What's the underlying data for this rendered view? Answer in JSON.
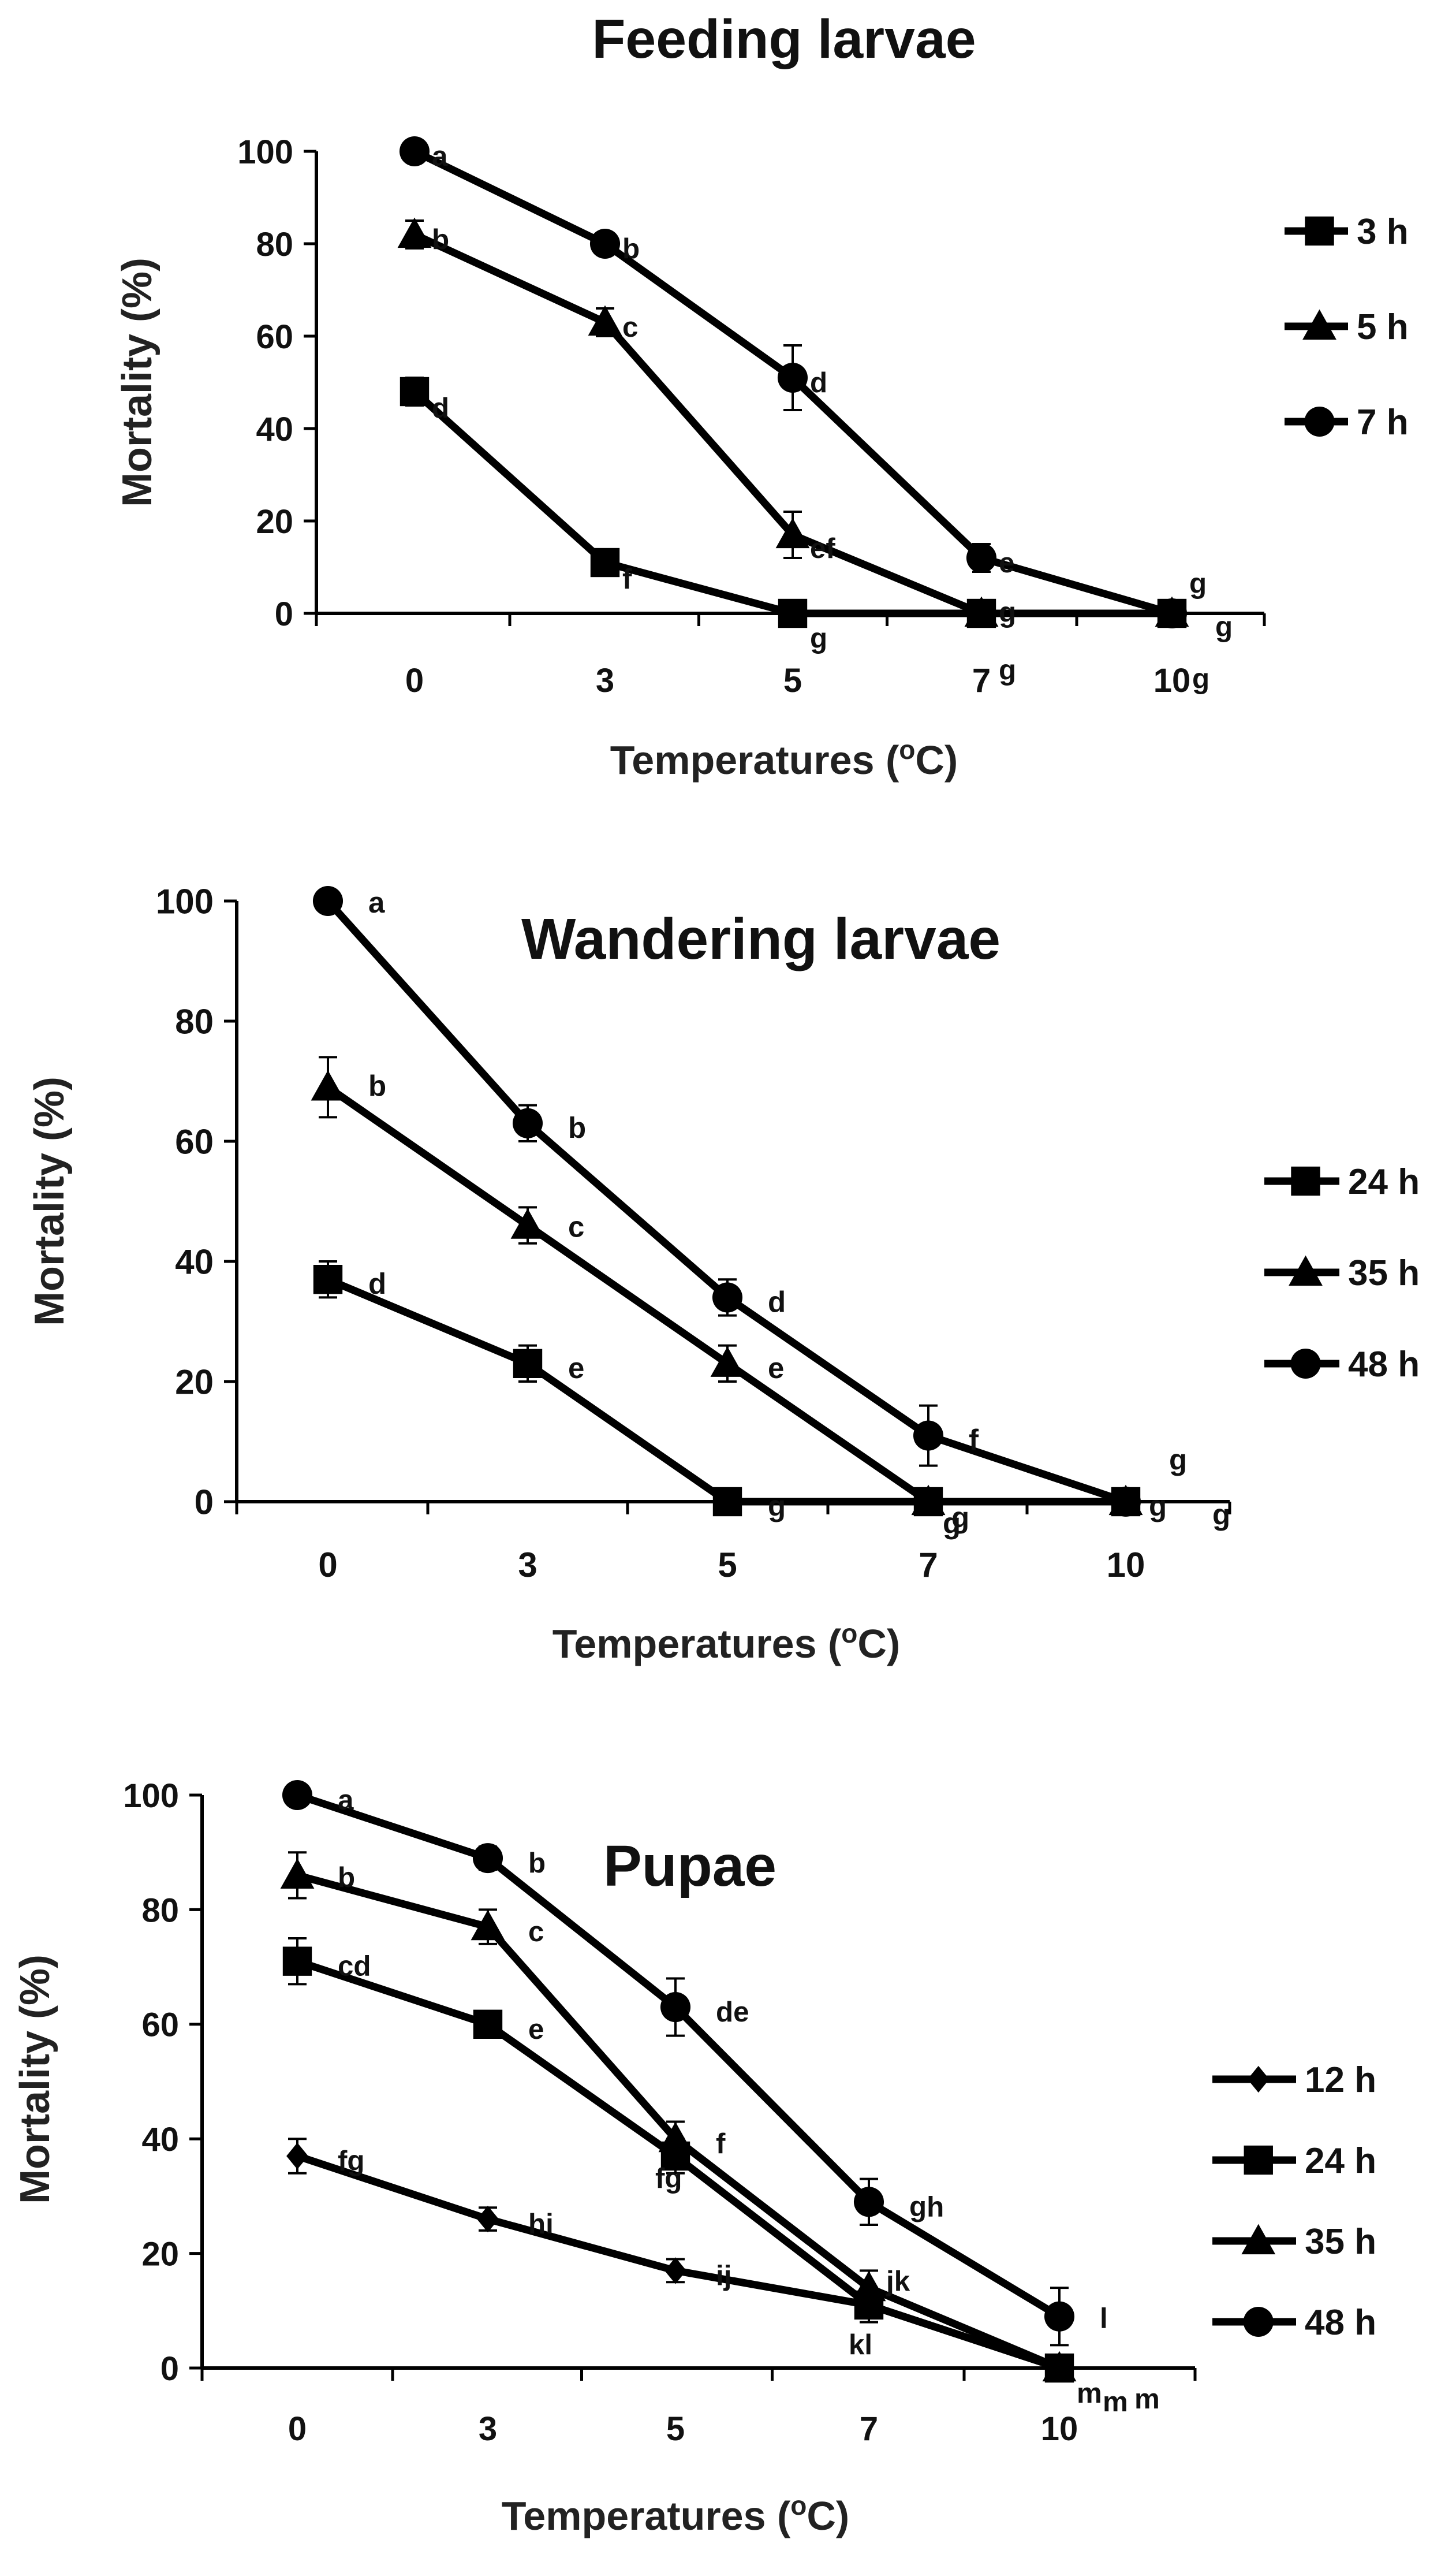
{
  "chart_data": [
    {
      "type": "line",
      "title": "Feeding larvae",
      "xlabel": "Temperatures (",
      "xlabel_sup": "o",
      "xlabel_tail": "C)",
      "ylabel": "Mortality (%)",
      "categories": [
        "0",
        "3",
        "5",
        "7",
        "10"
      ],
      "ylim": [
        0,
        100
      ],
      "yticks": [
        "0",
        "20",
        "40",
        "60",
        "80",
        "100"
      ],
      "series": [
        {
          "name": "3 h",
          "marker": "square",
          "values": [
            48,
            11,
            0,
            0,
            0
          ],
          "errors": [
            3,
            2,
            0,
            0,
            0
          ],
          "letters": [
            "d",
            "f",
            "g",
            "g",
            "g"
          ]
        },
        {
          "name": "5 h",
          "marker": "triangle",
          "values": [
            82,
            63,
            17,
            0,
            0
          ],
          "errors": [
            3,
            3,
            5,
            0,
            0
          ],
          "letters": [
            "b",
            "c",
            "ef",
            "g",
            "g"
          ]
        },
        {
          "name": "7 h",
          "marker": "circle",
          "values": [
            100,
            80,
            51,
            12,
            0
          ],
          "errors": [
            0,
            2,
            7,
            3,
            0
          ],
          "letters": [
            "a",
            "b",
            "d",
            "e",
            "g"
          ]
        }
      ]
    },
    {
      "type": "line",
      "title": "Wandering larvae",
      "xlabel": "Temperatures (",
      "xlabel_sup": "o",
      "xlabel_tail": "C)",
      "ylabel": "Mortality (%)",
      "categories": [
        "0",
        "3",
        "5",
        "7",
        "10"
      ],
      "ylim": [
        0,
        100
      ],
      "yticks": [
        "0",
        "20",
        "40",
        "60",
        "80",
        "100"
      ],
      "series": [
        {
          "name": "24 h",
          "marker": "square",
          "values": [
            37,
            23,
            0,
            0,
            0
          ],
          "errors": [
            3,
            3,
            0,
            0,
            0
          ],
          "letters": [
            "d",
            "e",
            "g",
            "g",
            "g"
          ]
        },
        {
          "name": "35 h",
          "marker": "triangle",
          "values": [
            69,
            46,
            23,
            0,
            0
          ],
          "errors": [
            5,
            3,
            3,
            0,
            0
          ],
          "letters": [
            "b",
            "c",
            "e",
            "g",
            "g"
          ]
        },
        {
          "name": "48 h",
          "marker": "circle",
          "values": [
            100,
            63,
            34,
            11,
            0
          ],
          "errors": [
            0,
            3,
            3,
            5,
            0
          ],
          "letters": [
            "a",
            "b",
            "d",
            "f",
            "g"
          ]
        }
      ]
    },
    {
      "type": "line",
      "title": "Pupae",
      "xlabel": "Temperatures (",
      "xlabel_sup": "o",
      "xlabel_tail": "C)",
      "ylabel": "Mortality (%)",
      "categories": [
        "0",
        "3",
        "5",
        "7",
        "10"
      ],
      "ylim": [
        0,
        100
      ],
      "yticks": [
        "0",
        "20",
        "40",
        "60",
        "80",
        "100"
      ],
      "series": [
        {
          "name": "12 h",
          "marker": "diamond",
          "values": [
            37,
            26,
            17,
            11,
            0
          ],
          "errors": [
            3,
            2,
            2,
            0,
            0
          ],
          "letters": [
            "fg",
            "hi",
            "ij",
            "kl",
            "m"
          ]
        },
        {
          "name": "24 h",
          "marker": "square",
          "values": [
            71,
            60,
            37,
            11,
            0
          ],
          "errors": [
            4,
            2,
            3,
            3,
            0
          ],
          "letters": [
            "cd",
            "e",
            "fg",
            "",
            "m"
          ]
        },
        {
          "name": "35 h",
          "marker": "triangle",
          "values": [
            86,
            77,
            40,
            14,
            0
          ],
          "errors": [
            4,
            3,
            3,
            3,
            0
          ],
          "letters": [
            "b",
            "c",
            "f",
            "jk",
            "m"
          ]
        },
        {
          "name": "48 h",
          "marker": "circle",
          "values": [
            100,
            89,
            63,
            29,
            9
          ],
          "errors": [
            0,
            2,
            5,
            4,
            5
          ],
          "letters": [
            "a",
            "b",
            "de",
            "gh",
            "l"
          ]
        }
      ]
    }
  ]
}
